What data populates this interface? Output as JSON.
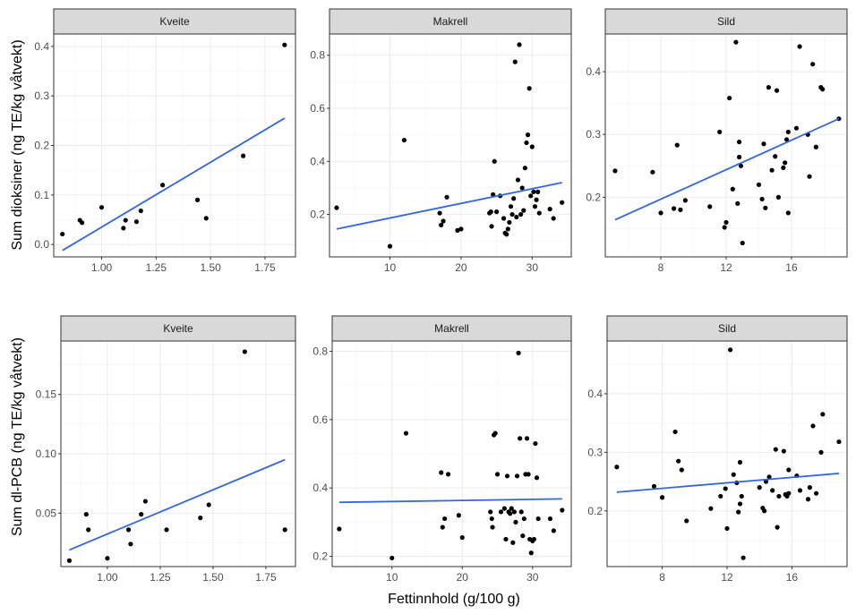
{
  "colors": {
    "fit_line": "#3366e0",
    "points": "#000000",
    "strip_fill": "#d9d9d9",
    "border": "#333333",
    "grid_major": "#ebebeb",
    "grid_minor": "#f5f5f5"
  },
  "figure": {
    "xlabel": "Fettinnhold (g/100 g)"
  },
  "chart_data": [
    {
      "type": "scatter",
      "facet": "Kveite",
      "ylabel": "Sum dioksiner (ng TE/kg våtvekt)",
      "xlim": [
        0.78,
        1.89
      ],
      "ylim": [
        -0.025,
        0.425
      ],
      "xticks": [
        1.0,
        1.25,
        1.5,
        1.75
      ],
      "xtick_labels": [
        "1.00",
        "1.25",
        "1.50",
        "1.75"
      ],
      "yticks": [
        0.0,
        0.1,
        0.2,
        0.3,
        0.4
      ],
      "ytick_labels": [
        "0.0",
        "0.1",
        "0.2",
        "0.3",
        "0.4"
      ],
      "points": [
        [
          0.82,
          0.021
        ],
        [
          0.9,
          0.049
        ],
        [
          0.91,
          0.044
        ],
        [
          1.0,
          0.075
        ],
        [
          1.1,
          0.033
        ],
        [
          1.11,
          0.049
        ],
        [
          1.16,
          0.046
        ],
        [
          1.18,
          0.068
        ],
        [
          1.28,
          0.12
        ],
        [
          1.44,
          0.09
        ],
        [
          1.48,
          0.053
        ],
        [
          1.65,
          0.179
        ],
        [
          1.84,
          0.403
        ]
      ],
      "fit": [
        [
          0.82,
          -0.012
        ],
        [
          1.84,
          0.255
        ]
      ]
    },
    {
      "type": "scatter",
      "facet": "Makrell",
      "ylabel": "Sum dioksiner (ng TE/kg våtvekt)",
      "xlim": [
        1.5,
        35.5
      ],
      "ylim": [
        0.04,
        0.88
      ],
      "xticks": [
        10,
        20,
        30
      ],
      "xtick_labels": [
        "10",
        "20",
        "30"
      ],
      "yticks": [
        0.2,
        0.4,
        0.6,
        0.8
      ],
      "ytick_labels": [
        "0.2",
        "0.4",
        "0.6",
        "0.8"
      ],
      "points": [
        [
          2.5,
          0.225
        ],
        [
          10,
          0.08
        ],
        [
          12,
          0.48
        ],
        [
          17,
          0.205
        ],
        [
          17.2,
          0.16
        ],
        [
          17.5,
          0.175
        ],
        [
          18,
          0.265
        ],
        [
          19.5,
          0.14
        ],
        [
          20,
          0.145
        ],
        [
          24,
          0.205
        ],
        [
          24.2,
          0.21
        ],
        [
          24.3,
          0.155
        ],
        [
          24.5,
          0.275
        ],
        [
          24.7,
          0.4
        ],
        [
          25,
          0.21
        ],
        [
          25.5,
          0.27
        ],
        [
          26,
          0.185
        ],
        [
          26.2,
          0.13
        ],
        [
          26.4,
          0.125
        ],
        [
          26.6,
          0.145
        ],
        [
          26.8,
          0.17
        ],
        [
          27,
          0.23
        ],
        [
          27.2,
          0.2
        ],
        [
          27.4,
          0.26
        ],
        [
          27.6,
          0.775
        ],
        [
          27.8,
          0.19
        ],
        [
          28,
          0.33
        ],
        [
          28.2,
          0.84
        ],
        [
          28.4,
          0.2
        ],
        [
          28.6,
          0.3
        ],
        [
          28.8,
          0.215
        ],
        [
          29,
          0.375
        ],
        [
          29.2,
          0.47
        ],
        [
          29.4,
          0.5
        ],
        [
          29.6,
          0.675
        ],
        [
          29.8,
          0.27
        ],
        [
          30,
          0.455
        ],
        [
          30.2,
          0.285
        ],
        [
          30.4,
          0.23
        ],
        [
          30.6,
          0.255
        ],
        [
          30.8,
          0.285
        ],
        [
          31,
          0.205
        ],
        [
          32.5,
          0.22
        ],
        [
          33,
          0.185
        ],
        [
          34.2,
          0.245
        ]
      ],
      "fit": [
        [
          2.5,
          0.145
        ],
        [
          34.2,
          0.32
        ]
      ]
    },
    {
      "type": "scatter",
      "facet": "Sild",
      "ylabel": "Sum dioksiner (ng TE/kg våtvekt)",
      "xlim": [
        4.6,
        19.4
      ],
      "ylim": [
        0.105,
        0.46
      ],
      "xticks": [
        8,
        12,
        16
      ],
      "xtick_labels": [
        "8",
        "12",
        "16"
      ],
      "yticks": [
        0.2,
        0.3,
        0.4
      ],
      "ytick_labels": [
        "0.2",
        "0.3",
        "0.4"
      ],
      "points": [
        [
          5.2,
          0.242
        ],
        [
          7.5,
          0.24
        ],
        [
          8,
          0.175
        ],
        [
          8.8,
          0.182
        ],
        [
          9,
          0.283
        ],
        [
          9.2,
          0.18
        ],
        [
          9.5,
          0.195
        ],
        [
          11,
          0.185
        ],
        [
          11.6,
          0.304
        ],
        [
          11.9,
          0.152
        ],
        [
          12,
          0.16
        ],
        [
          12.2,
          0.358
        ],
        [
          12.4,
          0.213
        ],
        [
          12.6,
          0.447
        ],
        [
          12.7,
          0.19
        ],
        [
          12.8,
          0.264
        ],
        [
          12.8,
          0.288
        ],
        [
          12.9,
          0.25
        ],
        [
          13,
          0.127
        ],
        [
          14,
          0.22
        ],
        [
          14.2,
          0.197
        ],
        [
          14.3,
          0.285
        ],
        [
          14.4,
          0.183
        ],
        [
          14.6,
          0.375
        ],
        [
          14.8,
          0.243
        ],
        [
          15,
          0.265
        ],
        [
          15.1,
          0.37
        ],
        [
          15.2,
          0.2
        ],
        [
          15.5,
          0.247
        ],
        [
          15.6,
          0.255
        ],
        [
          15.7,
          0.292
        ],
        [
          15.8,
          0.175
        ],
        [
          15.8,
          0.304
        ],
        [
          16.3,
          0.31
        ],
        [
          16.5,
          0.44
        ],
        [
          17,
          0.3
        ],
        [
          17.1,
          0.233
        ],
        [
          17.3,
          0.412
        ],
        [
          17.5,
          0.28
        ],
        [
          17.8,
          0.375
        ],
        [
          17.9,
          0.372
        ],
        [
          18.9,
          0.325
        ]
      ],
      "fit": [
        [
          5.2,
          0.164
        ],
        [
          18.9,
          0.325
        ]
      ]
    },
    {
      "type": "scatter",
      "facet": "Kveite",
      "ylabel": "Sum dl-PCB (ng TE/kg våtvekt)",
      "xlim": [
        0.78,
        1.89
      ],
      "ylim": [
        0.005,
        0.195
      ],
      "xticks": [
        1.0,
        1.25,
        1.5,
        1.75
      ],
      "xtick_labels": [
        "1.00",
        "1.25",
        "1.50",
        "1.75"
      ],
      "yticks": [
        0.05,
        0.1,
        0.15
      ],
      "ytick_labels": [
        "0.05",
        "0.10",
        "0.15"
      ],
      "points": [
        [
          0.82,
          0.01
        ],
        [
          0.9,
          0.049
        ],
        [
          0.91,
          0.036
        ],
        [
          1.0,
          0.012
        ],
        [
          1.1,
          0.036
        ],
        [
          1.11,
          0.024
        ],
        [
          1.16,
          0.049
        ],
        [
          1.18,
          0.06
        ],
        [
          1.28,
          0.036
        ],
        [
          1.44,
          0.046
        ],
        [
          1.48,
          0.057
        ],
        [
          1.65,
          0.186
        ],
        [
          1.84,
          0.036
        ]
      ],
      "fit": [
        [
          0.82,
          0.019
        ],
        [
          1.84,
          0.095
        ]
      ]
    },
    {
      "type": "scatter",
      "facet": "Makrell",
      "ylabel": "Sum dl-PCB (ng TE/kg våtvekt)",
      "xlim": [
        1.5,
        35.5
      ],
      "ylim": [
        0.17,
        0.83
      ],
      "xticks": [
        10,
        20,
        30
      ],
      "xtick_labels": [
        "10",
        "20",
        "30"
      ],
      "yticks": [
        0.2,
        0.4,
        0.6,
        0.8
      ],
      "ytick_labels": [
        "0.2",
        "0.4",
        "0.6",
        "0.8"
      ],
      "points": [
        [
          2.5,
          0.28
        ],
        [
          10,
          0.195
        ],
        [
          12,
          0.56
        ],
        [
          17,
          0.445
        ],
        [
          17.2,
          0.285
        ],
        [
          17.5,
          0.31
        ],
        [
          18,
          0.44
        ],
        [
          19.5,
          0.32
        ],
        [
          20,
          0.255
        ],
        [
          24,
          0.33
        ],
        [
          24.2,
          0.31
        ],
        [
          24.3,
          0.285
        ],
        [
          24.5,
          0.555
        ],
        [
          24.7,
          0.56
        ],
        [
          25,
          0.44
        ],
        [
          25.5,
          0.33
        ],
        [
          26,
          0.34
        ],
        [
          26.2,
          0.25
        ],
        [
          26.4,
          0.435
        ],
        [
          26.6,
          0.33
        ],
        [
          26.8,
          0.325
        ],
        [
          27,
          0.34
        ],
        [
          27.2,
          0.24
        ],
        [
          27.4,
          0.33
        ],
        [
          27.6,
          0.3
        ],
        [
          27.8,
          0.435
        ],
        [
          28,
          0.795
        ],
        [
          28.2,
          0.545
        ],
        [
          28.4,
          0.33
        ],
        [
          28.6,
          0.26
        ],
        [
          28.8,
          0.31
        ],
        [
          29,
          0.44
        ],
        [
          29.2,
          0.545
        ],
        [
          29.4,
          0.44
        ],
        [
          29.6,
          0.25
        ],
        [
          29.8,
          0.21
        ],
        [
          30,
          0.245
        ],
        [
          30.2,
          0.25
        ],
        [
          30.4,
          0.53
        ],
        [
          30.6,
          0.43
        ],
        [
          30.8,
          0.31
        ],
        [
          32.5,
          0.31
        ],
        [
          33,
          0.275
        ],
        [
          34.2,
          0.335
        ]
      ],
      "fit": [
        [
          2.5,
          0.358
        ],
        [
          34.2,
          0.368
        ]
      ]
    },
    {
      "type": "scatter",
      "facet": "Sild",
      "ylabel": "Sum dl-PCB (ng TE/kg våtvekt)",
      "xlim": [
        4.6,
        19.4
      ],
      "ylim": [
        0.105,
        0.49
      ],
      "xticks": [
        8,
        12,
        16
      ],
      "xtick_labels": [
        "8",
        "12",
        "16"
      ],
      "yticks": [
        0.2,
        0.3,
        0.4
      ],
      "ytick_labels": [
        "0.2",
        "0.3",
        "0.4"
      ],
      "points": [
        [
          5.2,
          0.275
        ],
        [
          7.5,
          0.242
        ],
        [
          8,
          0.223
        ],
        [
          8.8,
          0.335
        ],
        [
          9,
          0.285
        ],
        [
          9.2,
          0.27
        ],
        [
          9.5,
          0.183
        ],
        [
          11,
          0.204
        ],
        [
          11.6,
          0.225
        ],
        [
          11.9,
          0.238
        ],
        [
          12,
          0.17
        ],
        [
          12.2,
          0.475
        ],
        [
          12.4,
          0.262
        ],
        [
          12.6,
          0.248
        ],
        [
          12.7,
          0.198
        ],
        [
          12.8,
          0.283
        ],
        [
          12.8,
          0.212
        ],
        [
          12.9,
          0.225
        ],
        [
          13,
          0.12
        ],
        [
          14,
          0.24
        ],
        [
          14.2,
          0.205
        ],
        [
          14.3,
          0.2
        ],
        [
          14.4,
          0.25
        ],
        [
          14.6,
          0.258
        ],
        [
          14.8,
          0.235
        ],
        [
          15,
          0.305
        ],
        [
          15.1,
          0.172
        ],
        [
          15.2,
          0.225
        ],
        [
          15.5,
          0.302
        ],
        [
          15.6,
          0.228
        ],
        [
          15.7,
          0.225
        ],
        [
          15.8,
          0.27
        ],
        [
          15.8,
          0.23
        ],
        [
          16.3,
          0.26
        ],
        [
          16.5,
          0.235
        ],
        [
          17,
          0.22
        ],
        [
          17.1,
          0.24
        ],
        [
          17.3,
          0.345
        ],
        [
          17.5,
          0.23
        ],
        [
          17.8,
          0.3
        ],
        [
          17.9,
          0.365
        ],
        [
          18.9,
          0.318
        ]
      ],
      "fit": [
        [
          5.2,
          0.232
        ],
        [
          18.9,
          0.264
        ]
      ]
    }
  ]
}
